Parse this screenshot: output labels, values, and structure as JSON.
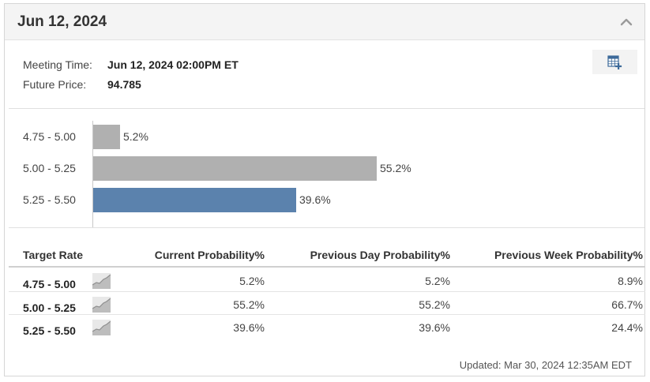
{
  "header": {
    "title": "Jun 12, 2024"
  },
  "meeting": {
    "time_label": "Meeting Time:",
    "time_value": "Jun 12, 2024 02:00PM ET",
    "price_label": "Future Price:",
    "price_value": "94.785"
  },
  "chart_data": {
    "type": "bar",
    "orientation": "horizontal",
    "categories": [
      "4.75 - 5.00",
      "5.00 - 5.25",
      "5.25 - 5.50"
    ],
    "values": [
      5.2,
      55.2,
      39.6
    ],
    "value_labels": [
      "5.2%",
      "55.2%",
      "39.6%"
    ],
    "highlighted_category": "5.25 - 5.50",
    "colors": {
      "default": "#b0b0b0",
      "highlight": "#5b82ad"
    },
    "xlim": [
      0,
      100
    ],
    "grid": false
  },
  "table": {
    "headers": [
      "Target Rate",
      "Current Probability%",
      "Previous Day Probability%",
      "Previous Week Probability%"
    ],
    "rows": [
      {
        "rate": "4.75 - 5.00",
        "current": "5.2%",
        "prev_day": "5.2%",
        "prev_week": "8.9%"
      },
      {
        "rate": "5.00 - 5.25",
        "current": "55.2%",
        "prev_day": "55.2%",
        "prev_week": "66.7%"
      },
      {
        "rate": "5.25 - 5.50",
        "current": "39.6%",
        "prev_day": "39.6%",
        "prev_week": "24.4%"
      }
    ]
  },
  "footer": {
    "updated": "Updated: Mar 30, 2024 12:35AM EDT"
  },
  "icons": {
    "collapse": "chevron-up-icon",
    "calendar": "calendar-add-icon",
    "trend": "trend-chart-icon"
  }
}
